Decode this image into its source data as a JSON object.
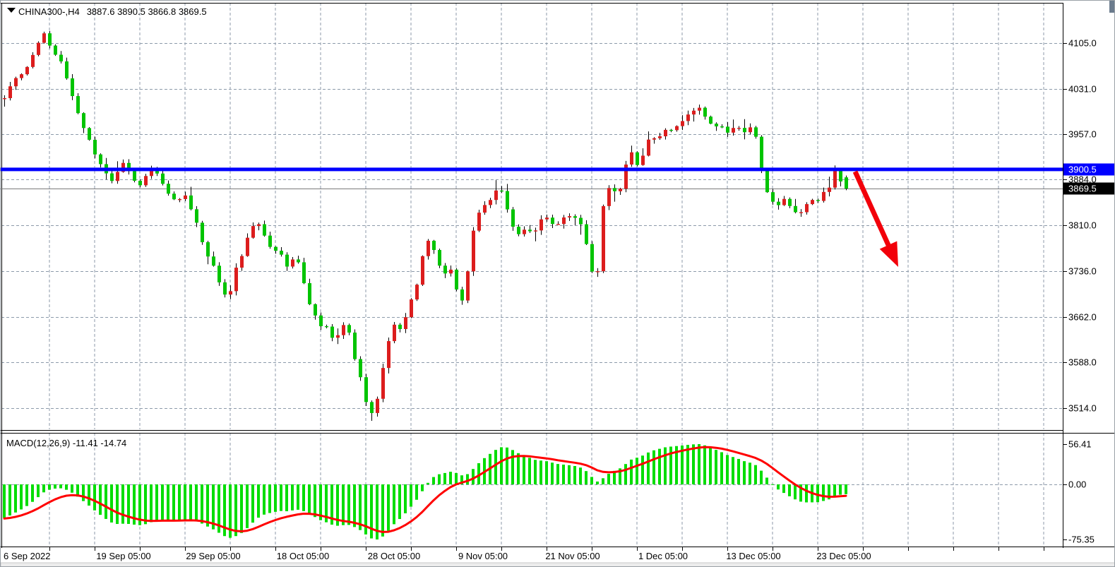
{
  "window": {
    "app": "trading-chart-terminal",
    "title_symbol": "CHINA300-,H4",
    "title_ohlc": "3887.6 3890.5 3866.8 3869.5"
  },
  "colors": {
    "background": "#ffffff",
    "grid": "#8c9aaa",
    "bull_candle": "#dc1d1d",
    "bear_candle": "#00c400",
    "wick": "#000000",
    "macd_histogram": "#00dd00",
    "macd_signal": "#ff0000",
    "resistance_line": "#0000ff",
    "current_price_line": "#7a7a7a",
    "arrow": "#f2000a",
    "tag_resistance_bg": "#0000ff",
    "tag_current_bg": "#000000",
    "tag_text": "#ffffff",
    "corner_marker": "#6b7b8d"
  },
  "indicator_panel": {
    "label": "MACD(12,26,9) -11.41 -14.74",
    "macd_value": -11.41,
    "signal_value": -14.74
  },
  "price_tags": {
    "resistance": {
      "label": "3900.5",
      "price": 3900.5
    },
    "current": {
      "label": "3869.5",
      "price": 3869.5
    }
  },
  "axes": {
    "price": {
      "labels": [
        "4105.0",
        "4031.0",
        "3957.0",
        "3884.0",
        "3810.0",
        "3736.0",
        "3662.0",
        "3588.0",
        "3514.0"
      ],
      "values": [
        4105.0,
        4031.0,
        3957.0,
        3884.0,
        3810.0,
        3736.0,
        3662.0,
        3588.0,
        3514.0
      ]
    },
    "macd": {
      "labels": [
        "56.41",
        "0.00",
        "-75.35"
      ],
      "values": [
        56.41,
        0.0,
        -75.35
      ]
    },
    "time": {
      "labels": [
        "6 Sep 2022",
        "19 Sep 05:00",
        "29 Sep 05:00",
        "18 Oct 05:00",
        "28 Oct 05:00",
        "9 Nov 05:00",
        "21 Nov 05:00",
        "1 Dec 05:00",
        "13 Dec 05:00",
        "23 Dec 05:00"
      ]
    }
  },
  "annotations": {
    "resistance_hline": {
      "price": 3900.5
    },
    "current_price_hline": {
      "price": 3869.5
    },
    "arrow": {
      "tail": [
        1210,
        242
      ],
      "tip": [
        1271,
        377
      ]
    }
  },
  "chart_data": {
    "type": "candlestick+macd",
    "symbol": "CHINA300-",
    "timeframe": "H4",
    "last_ohlc": {
      "open": 3887.6,
      "high": 3890.5,
      "low": 3866.8,
      "close": 3869.5
    },
    "price_axis_range": [
      3490,
      4140
    ],
    "macd_axis": {
      "max": 56.41,
      "zero": 0.0,
      "min": -75.35
    },
    "grid": "dashed",
    "price_path": [
      [
        -320,
        4280
      ],
      [
        -240,
        4215
      ],
      [
        -160,
        4140
      ],
      [
        -80,
        4060
      ],
      [
        -20,
        4020
      ],
      [
        5,
        4015
      ],
      [
        18,
        4042
      ],
      [
        35,
        4062
      ],
      [
        50,
        4098
      ],
      [
        62,
        4126
      ],
      [
        72,
        4092
      ],
      [
        85,
        4078
      ],
      [
        95,
        4040
      ],
      [
        105,
        4000
      ],
      [
        118,
        3968
      ],
      [
        132,
        3928
      ],
      [
        148,
        3892
      ],
      [
        158,
        3878
      ],
      [
        170,
        3914
      ],
      [
        182,
        3898
      ],
      [
        195,
        3868
      ],
      [
        205,
        3888
      ],
      [
        215,
        3908
      ],
      [
        228,
        3882
      ],
      [
        240,
        3858
      ],
      [
        252,
        3852
      ],
      [
        262,
        3856
      ],
      [
        275,
        3820
      ],
      [
        288,
        3772
      ],
      [
        300,
        3746
      ],
      [
        312,
        3712
      ],
      [
        322,
        3684
      ],
      [
        332,
        3738
      ],
      [
        342,
        3762
      ],
      [
        352,
        3800
      ],
      [
        362,
        3822
      ],
      [
        372,
        3798
      ],
      [
        382,
        3772
      ],
      [
        395,
        3768
      ],
      [
        403,
        3740
      ],
      [
        412,
        3758
      ],
      [
        422,
        3752
      ],
      [
        432,
        3702
      ],
      [
        442,
        3668
      ],
      [
        452,
        3648
      ],
      [
        462,
        3642
      ],
      [
        472,
        3618
      ],
      [
        482,
        3650
      ],
      [
        492,
        3638
      ],
      [
        502,
        3590
      ],
      [
        512,
        3548
      ],
      [
        522,
        3505
      ],
      [
        530,
        3512
      ],
      [
        538,
        3558
      ],
      [
        548,
        3622
      ],
      [
        558,
        3652
      ],
      [
        568,
        3638
      ],
      [
        578,
        3678
      ],
      [
        588,
        3712
      ],
      [
        598,
        3762
      ],
      [
        606,
        3788
      ],
      [
        616,
        3760
      ],
      [
        626,
        3724
      ],
      [
        636,
        3744
      ],
      [
        646,
        3702
      ],
      [
        656,
        3682
      ],
      [
        666,
        3786
      ],
      [
        676,
        3832
      ],
      [
        686,
        3844
      ],
      [
        696,
        3858
      ],
      [
        706,
        3876
      ],
      [
        714,
        3848
      ],
      [
        724,
        3812
      ],
      [
        734,
        3796
      ],
      [
        744,
        3806
      ],
      [
        754,
        3792
      ],
      [
        764,
        3818
      ],
      [
        774,
        3824
      ],
      [
        784,
        3808
      ],
      [
        794,
        3818
      ],
      [
        804,
        3828
      ],
      [
        814,
        3822
      ],
      [
        824,
        3806
      ],
      [
        834,
        3758
      ],
      [
        842,
        3692
      ],
      [
        852,
        3838
      ],
      [
        860,
        3868
      ],
      [
        870,
        3866
      ],
      [
        880,
        3874
      ],
      [
        890,
        3936
      ],
      [
        900,
        3908
      ],
      [
        910,
        3922
      ],
      [
        920,
        3958
      ],
      [
        930,
        3946
      ],
      [
        940,
        3962
      ],
      [
        950,
        3968
      ],
      [
        960,
        3972
      ],
      [
        970,
        3984
      ],
      [
        980,
        3994
      ],
      [
        990,
        4000
      ],
      [
        1000,
        3984
      ],
      [
        1010,
        3968
      ],
      [
        1020,
        3974
      ],
      [
        1030,
        3962
      ],
      [
        1040,
        3974
      ],
      [
        1050,
        3958
      ],
      [
        1060,
        3968
      ],
      [
        1070,
        3952
      ],
      [
        1080,
        3882
      ],
      [
        1090,
        3848
      ],
      [
        1100,
        3838
      ],
      [
        1110,
        3854
      ],
      [
        1120,
        3834
      ],
      [
        1130,
        3828
      ],
      [
        1140,
        3844
      ],
      [
        1150,
        3854
      ],
      [
        1160,
        3848
      ],
      [
        1170,
        3876
      ],
      [
        1181,
        3897
      ],
      [
        1189,
        3885
      ],
      [
        1197,
        3869.5
      ]
    ]
  }
}
